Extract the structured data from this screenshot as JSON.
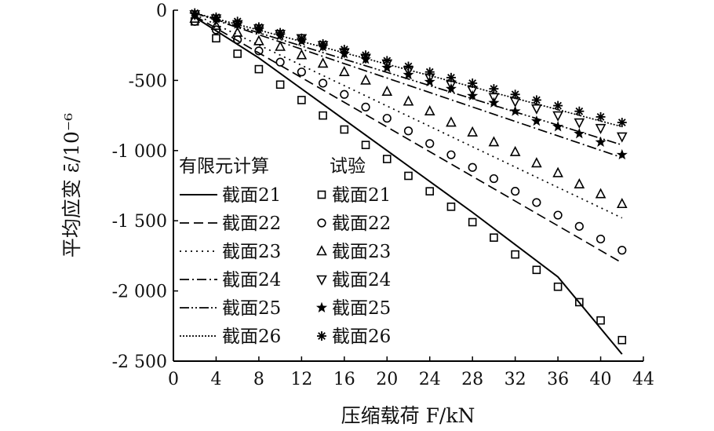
{
  "chart_data": {
    "type": "line",
    "xlabel": "压缩载荷 F/kN",
    "ylabel": "平均应变 ε̄/10⁻⁶",
    "xlim": [
      0,
      44
    ],
    "ylim": [
      -2500,
      0
    ],
    "x_ticks": [
      0,
      4,
      8,
      12,
      16,
      20,
      24,
      28,
      32,
      36,
      40,
      44
    ],
    "x_tick_labels": [
      "0",
      "4",
      "8",
      "12",
      "16",
      "20",
      "24",
      "28",
      "32",
      "36",
      "40",
      "44"
    ],
    "y_ticks": [
      0,
      -500,
      -1000,
      -1500,
      -2000,
      -2500
    ],
    "y_tick_labels": [
      "0",
      "-500",
      "-1 000",
      "-1 500",
      "-2 000",
      "-2 500"
    ],
    "grid": false,
    "legend_placement": "bottom-left",
    "legend_group_titles": [
      "有限元计算",
      "试验"
    ],
    "series_fe": [
      {
        "name": "截面21",
        "line_style": "solid",
        "x": [
          2,
          8,
          20,
          28,
          36,
          42
        ],
        "values": [
          -50,
          -340,
          -1000,
          -1440,
          -1900,
          -2450
        ]
      },
      {
        "name": "截面22",
        "line_style": "dashed",
        "x": [
          2,
          42
        ],
        "values": [
          -40,
          -1800
        ]
      },
      {
        "name": "截面23",
        "line_style": "dotted",
        "x": [
          2,
          42
        ],
        "values": [
          -30,
          -1480
        ]
      },
      {
        "name": "截面24",
        "line_style": "dashdot",
        "x": [
          2,
          42
        ],
        "values": [
          -20,
          -1050
        ]
      },
      {
        "name": "截面25",
        "line_style": "dashdotdot",
        "x": [
          2,
          42
        ],
        "values": [
          -20,
          -960
        ]
      },
      {
        "name": "截面26",
        "line_style": "fine-dotted",
        "x": [
          2,
          42
        ],
        "values": [
          -20,
          -830
        ]
      }
    ],
    "series_test": [
      {
        "name": "截面21",
        "marker": "square",
        "x": [
          2,
          4,
          6,
          8,
          10,
          12,
          14,
          16,
          18,
          20,
          22,
          24,
          26,
          28,
          30,
          32,
          34,
          36,
          38,
          40,
          42
        ],
        "values": [
          -80,
          -200,
          -310,
          -420,
          -530,
          -640,
          -750,
          -850,
          -960,
          -1060,
          -1180,
          -1290,
          -1400,
          -1510,
          -1620,
          -1740,
          -1850,
          -1970,
          -2080,
          -2210,
          -2350
        ]
      },
      {
        "name": "截面22",
        "marker": "circle",
        "x": [
          2,
          4,
          6,
          8,
          10,
          12,
          14,
          16,
          18,
          20,
          22,
          24,
          26,
          28,
          30,
          32,
          34,
          36,
          38,
          40,
          42
        ],
        "values": [
          -80,
          -140,
          -210,
          -290,
          -370,
          -440,
          -520,
          -600,
          -690,
          -770,
          -860,
          -950,
          -1030,
          -1120,
          -1200,
          -1290,
          -1370,
          -1460,
          -1540,
          -1630,
          -1710
        ]
      },
      {
        "name": "截面23",
        "marker": "triangle-up",
        "x": [
          2,
          4,
          6,
          8,
          10,
          12,
          14,
          16,
          18,
          20,
          22,
          24,
          26,
          28,
          30,
          32,
          34,
          36,
          38,
          40,
          42
        ],
        "values": [
          -60,
          -110,
          -160,
          -220,
          -260,
          -320,
          -380,
          -440,
          -500,
          -580,
          -650,
          -720,
          -800,
          -870,
          -940,
          -1010,
          -1090,
          -1160,
          -1240,
          -1310,
          -1380
        ]
      },
      {
        "name": "截面24",
        "marker": "triangle-down",
        "x": [
          2,
          4,
          6,
          8,
          10,
          12,
          14,
          16,
          18,
          20,
          22,
          24,
          26,
          28,
          30,
          32,
          34,
          36,
          38,
          40,
          42
        ],
        "values": [
          -30,
          -60,
          -100,
          -130,
          -170,
          -200,
          -250,
          -300,
          -340,
          -380,
          -430,
          -480,
          -530,
          -570,
          -620,
          -650,
          -700,
          -750,
          -800,
          -840,
          -900
        ]
      },
      {
        "name": "截面25",
        "marker": "star",
        "x": [
          2,
          4,
          6,
          8,
          10,
          12,
          14,
          16,
          18,
          20,
          22,
          24,
          26,
          28,
          30,
          32,
          34,
          36,
          38,
          40,
          42
        ],
        "values": [
          -30,
          -60,
          -100,
          -140,
          -180,
          -220,
          -260,
          -310,
          -350,
          -410,
          -460,
          -510,
          -560,
          -610,
          -660,
          -720,
          -790,
          -830,
          -880,
          -940,
          -1030
        ]
      },
      {
        "name": "截面26",
        "marker": "asterisk",
        "x": [
          2,
          4,
          6,
          8,
          10,
          12,
          14,
          16,
          18,
          20,
          22,
          24,
          26,
          28,
          30,
          32,
          34,
          36,
          38,
          40,
          42
        ],
        "values": [
          -20,
          -50,
          -80,
          -120,
          -160,
          -200,
          -240,
          -280,
          -320,
          -360,
          -400,
          -440,
          -480,
          -520,
          -560,
          -600,
          -640,
          -680,
          -720,
          -760,
          -800
        ]
      }
    ]
  }
}
